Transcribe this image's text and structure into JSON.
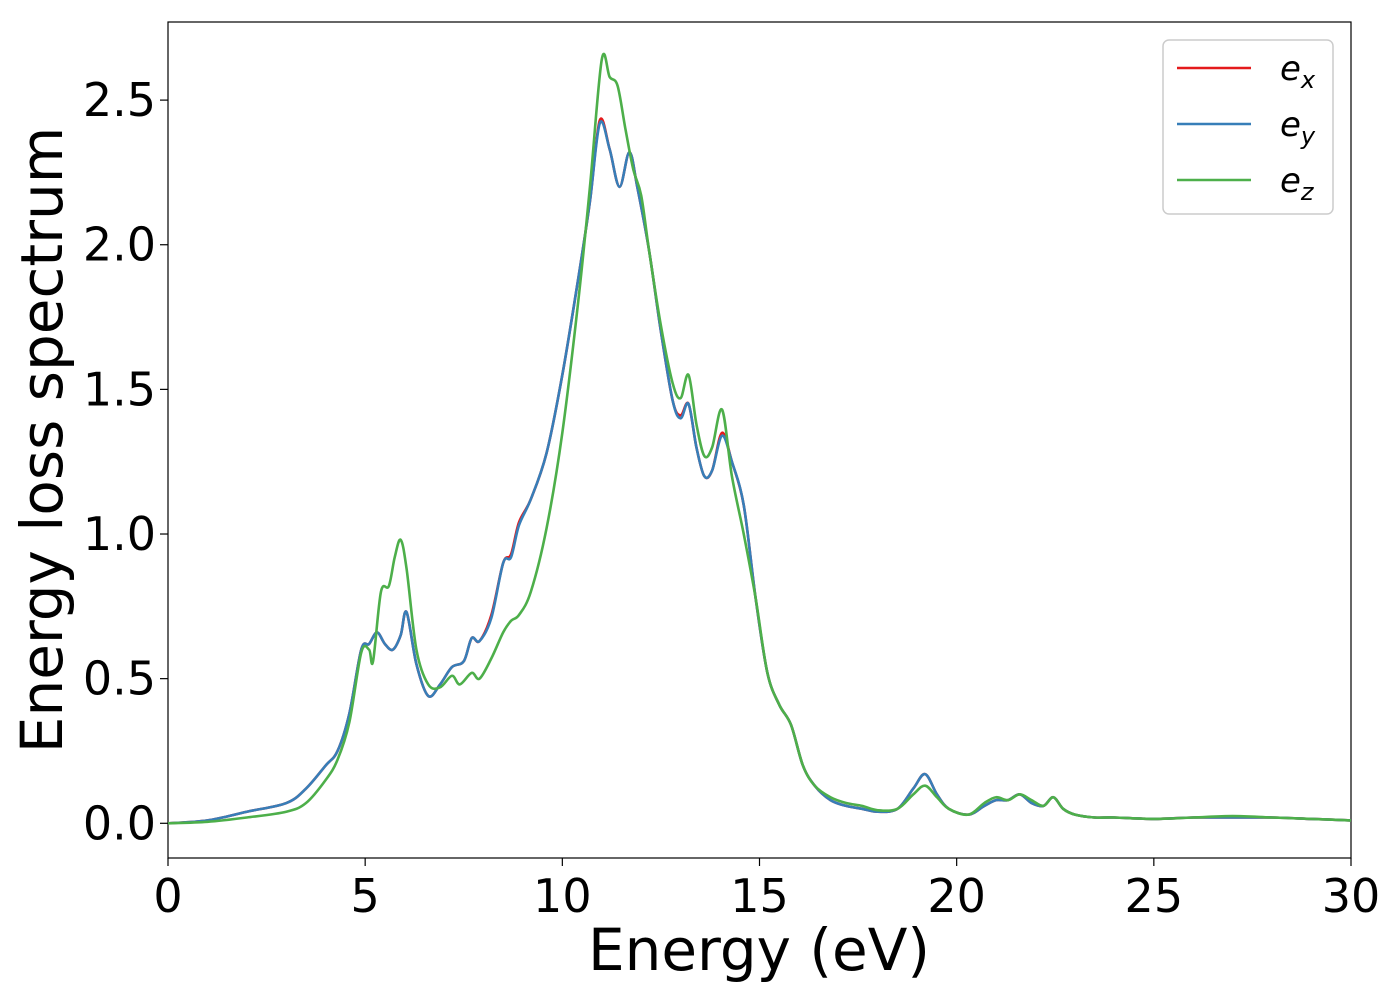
{
  "chart_data": {
    "type": "line",
    "title": "",
    "xlabel": "Energy (eV)",
    "ylabel": "Energy loss spectrum",
    "xlim": [
      0,
      30
    ],
    "ylim": [
      -0.12,
      2.77
    ],
    "xticks": [
      0,
      5,
      10,
      15,
      20,
      25,
      30
    ],
    "xtick_labels": [
      "0",
      "5",
      "10",
      "15",
      "20",
      "25",
      "30"
    ],
    "yticks": [
      0.0,
      0.5,
      1.0,
      1.5,
      2.0,
      2.5
    ],
    "ytick_labels": [
      "0.0",
      "0.5",
      "1.0",
      "1.5",
      "2.0",
      "2.5"
    ],
    "grid": false,
    "legend_position": "top-right",
    "series": [
      {
        "name": "e",
        "subscript": "x",
        "color": "#e41a1c",
        "x": [
          0,
          1.0,
          2.0,
          3.0,
          3.5,
          4.0,
          4.3,
          4.6,
          4.9,
          5.1,
          5.3,
          5.5,
          5.7,
          5.9,
          6.05,
          6.3,
          6.6,
          6.9,
          7.2,
          7.5,
          7.7,
          7.9,
          8.2,
          8.5,
          8.7,
          8.9,
          9.2,
          9.6,
          10.0,
          10.4,
          10.7,
          10.95,
          11.2,
          11.45,
          11.7,
          11.9,
          12.2,
          12.5,
          12.8,
          13.0,
          13.2,
          13.4,
          13.6,
          13.8,
          14.05,
          14.3,
          14.6,
          14.9,
          15.2,
          15.5,
          15.8,
          16.1,
          16.4,
          16.8,
          17.2,
          17.6,
          18.0,
          18.5,
          18.9,
          19.2,
          19.5,
          19.8,
          20.3,
          20.7,
          21.0,
          21.3,
          21.6,
          21.9,
          22.2,
          22.45,
          22.7,
          23.0,
          23.5,
          24.0,
          25.0,
          26.0,
          27.0,
          28.0,
          29.0,
          30.0
        ],
        "y": [
          0.0,
          0.01,
          0.04,
          0.07,
          0.12,
          0.2,
          0.25,
          0.38,
          0.6,
          0.62,
          0.66,
          0.62,
          0.6,
          0.65,
          0.73,
          0.55,
          0.44,
          0.48,
          0.54,
          0.56,
          0.64,
          0.63,
          0.72,
          0.9,
          0.93,
          1.04,
          1.12,
          1.28,
          1.55,
          1.88,
          2.15,
          2.43,
          2.33,
          2.2,
          2.32,
          2.2,
          1.98,
          1.7,
          1.46,
          1.41,
          1.45,
          1.3,
          1.2,
          1.22,
          1.35,
          1.25,
          1.1,
          0.78,
          0.52,
          0.41,
          0.34,
          0.2,
          0.13,
          0.08,
          0.06,
          0.05,
          0.04,
          0.05,
          0.12,
          0.17,
          0.1,
          0.05,
          0.03,
          0.06,
          0.08,
          0.08,
          0.1,
          0.07,
          0.06,
          0.09,
          0.05,
          0.03,
          0.02,
          0.02,
          0.015,
          0.02,
          0.02,
          0.02,
          0.015,
          0.01
        ]
      },
      {
        "name": "e",
        "subscript": "y",
        "color": "#377eb8",
        "x": [
          0,
          1.0,
          2.0,
          3.0,
          3.5,
          4.0,
          4.3,
          4.6,
          4.9,
          5.1,
          5.3,
          5.5,
          5.7,
          5.9,
          6.05,
          6.3,
          6.6,
          6.9,
          7.2,
          7.5,
          7.7,
          7.9,
          8.2,
          8.5,
          8.7,
          8.9,
          9.2,
          9.6,
          10.0,
          10.4,
          10.7,
          10.95,
          11.2,
          11.45,
          11.7,
          11.9,
          12.2,
          12.5,
          12.8,
          13.0,
          13.2,
          13.4,
          13.6,
          13.8,
          14.05,
          14.3,
          14.6,
          14.9,
          15.2,
          15.5,
          15.8,
          16.1,
          16.4,
          16.8,
          17.2,
          17.6,
          18.0,
          18.5,
          18.9,
          19.2,
          19.5,
          19.8,
          20.3,
          20.7,
          21.0,
          21.3,
          21.6,
          21.9,
          22.2,
          22.45,
          22.7,
          23.0,
          23.5,
          24.0,
          25.0,
          26.0,
          27.0,
          28.0,
          29.0,
          30.0
        ],
        "y": [
          0.0,
          0.01,
          0.04,
          0.07,
          0.12,
          0.2,
          0.25,
          0.38,
          0.6,
          0.62,
          0.66,
          0.62,
          0.6,
          0.65,
          0.73,
          0.55,
          0.44,
          0.48,
          0.54,
          0.56,
          0.64,
          0.63,
          0.71,
          0.9,
          0.92,
          1.03,
          1.12,
          1.28,
          1.55,
          1.88,
          2.15,
          2.42,
          2.33,
          2.2,
          2.32,
          2.2,
          1.98,
          1.7,
          1.46,
          1.4,
          1.45,
          1.3,
          1.2,
          1.22,
          1.34,
          1.25,
          1.1,
          0.78,
          0.52,
          0.41,
          0.34,
          0.2,
          0.13,
          0.08,
          0.06,
          0.05,
          0.04,
          0.05,
          0.12,
          0.17,
          0.1,
          0.05,
          0.03,
          0.06,
          0.08,
          0.08,
          0.1,
          0.07,
          0.06,
          0.09,
          0.05,
          0.03,
          0.02,
          0.02,
          0.015,
          0.02,
          0.02,
          0.02,
          0.015,
          0.01
        ]
      },
      {
        "name": "e",
        "subscript": "z",
        "color": "#4daf4a",
        "x": [
          0,
          1.0,
          2.0,
          3.0,
          3.5,
          4.0,
          4.3,
          4.6,
          4.9,
          5.1,
          5.2,
          5.4,
          5.6,
          5.75,
          5.9,
          6.05,
          6.3,
          6.6,
          6.9,
          7.2,
          7.4,
          7.7,
          7.9,
          8.2,
          8.5,
          8.7,
          8.9,
          9.2,
          9.6,
          10.0,
          10.4,
          10.7,
          11.0,
          11.2,
          11.4,
          11.6,
          11.8,
          12.0,
          12.2,
          12.5,
          12.8,
          13.0,
          13.2,
          13.4,
          13.6,
          13.8,
          14.05,
          14.3,
          14.6,
          14.9,
          15.2,
          15.5,
          15.8,
          16.1,
          16.4,
          16.8,
          17.2,
          17.6,
          18.0,
          18.5,
          18.9,
          19.2,
          19.5,
          19.8,
          20.3,
          20.7,
          21.0,
          21.3,
          21.6,
          21.9,
          22.2,
          22.45,
          22.7,
          23.0,
          23.5,
          24.0,
          25.0,
          26.0,
          27.0,
          28.0,
          29.0,
          30.0
        ],
        "y": [
          0.0,
          0.005,
          0.02,
          0.04,
          0.07,
          0.15,
          0.22,
          0.35,
          0.59,
          0.6,
          0.56,
          0.8,
          0.82,
          0.92,
          0.98,
          0.88,
          0.6,
          0.48,
          0.47,
          0.51,
          0.48,
          0.52,
          0.5,
          0.57,
          0.66,
          0.7,
          0.72,
          0.8,
          1.02,
          1.35,
          1.8,
          2.2,
          2.64,
          2.58,
          2.55,
          2.4,
          2.26,
          2.17,
          1.98,
          1.72,
          1.52,
          1.47,
          1.55,
          1.38,
          1.27,
          1.3,
          1.43,
          1.2,
          1.0,
          0.78,
          0.52,
          0.41,
          0.34,
          0.2,
          0.13,
          0.09,
          0.07,
          0.06,
          0.045,
          0.05,
          0.1,
          0.13,
          0.09,
          0.05,
          0.03,
          0.07,
          0.09,
          0.08,
          0.1,
          0.08,
          0.06,
          0.09,
          0.05,
          0.03,
          0.02,
          0.02,
          0.015,
          0.02,
          0.025,
          0.02,
          0.015,
          0.01
        ]
      }
    ]
  }
}
